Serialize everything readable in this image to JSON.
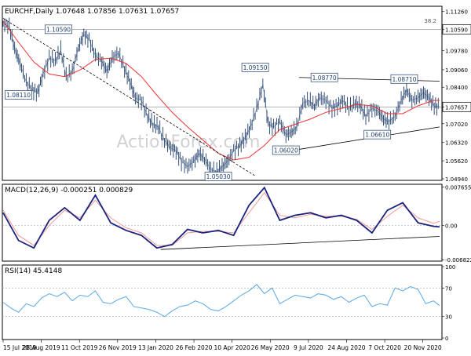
{
  "chart_data": [
    {
      "type": "candlestick",
      "title": "EURCHF,Daily  1.07648 1.07856 1.07631 1.07657",
      "price_readout": "1.07657",
      "y_ticks": [
        "1.11260",
        "1.10590",
        "1.09780",
        "1.09060",
        "1.08400",
        "1.07657",
        "1.07020",
        "1.06320",
        "1.05620",
        "1.04940"
      ],
      "ylim": [
        1.0494,
        1.114
      ],
      "x_ticks": [
        "15 Jul 2019",
        "28 Aug 2019",
        "11 Oct 2019",
        "26 Nov 2019",
        "13 Jan 2020",
        "26 Feb 2020",
        "10 Apr 2020",
        "26 May 2020",
        "9 Jul 2020",
        "24 Aug 2020",
        "7 Oct 2020",
        "20 Nov 2020"
      ],
      "series": [
        {
          "name": "Close",
          "x": [
            0,
            8,
            15,
            22,
            30,
            38,
            45,
            52,
            60,
            68,
            75,
            82,
            90,
            98,
            105,
            112,
            120,
            128,
            135,
            142,
            150,
            158,
            165,
            172,
            180,
            188,
            195,
            202,
            210,
            218,
            225,
            232,
            240,
            248,
            255,
            262,
            270,
            278,
            285,
            292,
            300,
            308,
            315,
            322,
            330,
            338,
            345,
            352,
            360,
            368,
            375,
            382,
            390,
            398,
            405,
            412,
            420,
            428,
            435,
            442,
            450,
            458,
            465,
            472,
            480,
            488,
            495,
            502,
            510,
            518,
            525,
            532,
            540,
            547,
            554,
            561,
            568
          ],
          "y": [
            1.108,
            1.107,
            1.0985,
            1.093,
            1.086,
            1.083,
            1.082,
            1.089,
            1.095,
            1.094,
            1.098,
            1.088,
            1.09,
            1.099,
            1.104,
            1.102,
            1.096,
            1.094,
            1.09,
            1.095,
            1.097,
            1.091,
            1.086,
            1.08,
            1.079,
            1.073,
            1.07,
            1.069,
            1.064,
            1.061,
            1.06,
            1.056,
            1.054,
            1.056,
            1.059,
            1.057,
            1.053,
            1.052,
            1.054,
            1.056,
            1.06,
            1.062,
            1.065,
            1.069,
            1.076,
            1.085,
            1.07,
            1.069,
            1.071,
            1.066,
            1.067,
            1.069,
            1.078,
            1.079,
            1.077,
            1.08,
            1.079,
            1.076,
            1.077,
            1.079,
            1.076,
            1.078,
            1.077,
            1.073,
            1.076,
            1.075,
            1.072,
            1.071,
            1.073,
            1.079,
            1.083,
            1.079,
            1.08,
            1.082,
            1.08,
            1.077,
            1.0766
          ]
        },
        {
          "name": "MA",
          "x": [
            0,
            20,
            40,
            60,
            80,
            100,
            120,
            140,
            160,
            180,
            200,
            220,
            240,
            260,
            280,
            300,
            320,
            340,
            360,
            380,
            400,
            420,
            440,
            460,
            480,
            500,
            520,
            540,
            560,
            568
          ],
          "y": [
            1.109,
            1.101,
            1.0935,
            1.089,
            1.088,
            1.0905,
            1.0945,
            1.095,
            1.093,
            1.088,
            1.081,
            1.0745,
            1.069,
            1.064,
            1.059,
            1.0565,
            1.0575,
            1.062,
            1.068,
            1.07,
            1.072,
            1.0745,
            1.076,
            1.0775,
            1.077,
            1.074,
            1.074,
            1.077,
            1.079,
            1.079
          ]
        }
      ],
      "levels": [
        {
          "label": "1.10590",
          "value": 1.1059
        },
        {
          "label": "1.07657",
          "value": 1.07657
        }
      ],
      "annotations": [
        {
          "label": "38.2",
          "value": 1.1078
        },
        {
          "label": "1.10590",
          "x": 72,
          "value": 1.1059
        },
        {
          "label": "1.08110",
          "x": 20,
          "value": 1.0811
        },
        {
          "label": "1.09150",
          "x": 328,
          "value": 1.0915
        },
        {
          "label": "1.08770",
          "x": 418,
          "value": 1.0877
        },
        {
          "label": "1.08710",
          "x": 522,
          "value": 1.0871
        },
        {
          "label": "1.06020",
          "x": 368,
          "value": 1.0602
        },
        {
          "label": "1.06610",
          "x": 487,
          "value": 1.0661
        },
        {
          "label": "1.05030",
          "x": 280,
          "value": 1.0503
        }
      ],
      "trendlines": [
        {
          "x": [
            0,
            328
          ],
          "y": [
            1.11,
            1.0505
          ]
        },
        {
          "x": [
            385,
            568
          ],
          "y": [
            1.0877,
            1.0863
          ]
        },
        {
          "x": [
            378,
            568
          ],
          "y": [
            1.0602,
            1.069
          ]
        }
      ],
      "watermark": "ActionForex.com"
    },
    {
      "type": "line",
      "title": "MACD(12,26,9) -0.000251 0.000829",
      "y_ticks": [
        "0.007655",
        "0.00",
        "-0.006822"
      ],
      "ylim": [
        -0.0068,
        0.0077
      ],
      "series": [
        {
          "name": "MACD",
          "x": [
            0,
            20,
            40,
            60,
            80,
            100,
            120,
            140,
            160,
            180,
            200,
            220,
            240,
            260,
            280,
            300,
            320,
            340,
            360,
            380,
            400,
            420,
            440,
            460,
            480,
            500,
            520,
            540,
            560,
            568
          ],
          "y": [
            0.0025,
            -0.003,
            -0.0045,
            0.001,
            0.0035,
            0.001,
            0.006,
            0.0005,
            -0.001,
            -0.002,
            -0.0045,
            -0.0038,
            -0.0008,
            -0.0015,
            -0.001,
            -0.002,
            0.004,
            0.0075,
            0.001,
            0.002,
            0.0025,
            0.0015,
            0.002,
            0.001,
            -0.0015,
            0.003,
            0.0045,
            0.0005,
            -0.0002,
            -0.0003
          ]
        },
        {
          "name": "Signal",
          "x": [
            0,
            20,
            40,
            60,
            80,
            100,
            120,
            140,
            160,
            180,
            200,
            220,
            240,
            260,
            280,
            300,
            320,
            340,
            360,
            380,
            400,
            420,
            440,
            460,
            480,
            500,
            520,
            540,
            560,
            568
          ],
          "y": [
            0.003,
            -0.002,
            -0.004,
            0.0,
            0.003,
            0.0015,
            0.005,
            0.0015,
            -0.0005,
            -0.0015,
            -0.004,
            -0.004,
            -0.0015,
            -0.0012,
            -0.0012,
            -0.0015,
            0.0025,
            0.0065,
            0.002,
            0.0015,
            0.0022,
            0.0018,
            0.0018,
            0.0012,
            -0.0008,
            0.0018,
            0.004,
            0.0015,
            0.0004,
            0.0008
          ]
        }
      ],
      "zero_line": 0,
      "trendline": {
        "x": [
          205,
          568
        ],
        "y": [
          -0.0048,
          -0.0022
        ]
      }
    },
    {
      "type": "line",
      "title": "RSI(14) 45.4148",
      "y_ticks": [
        "100",
        "70",
        "30",
        "0"
      ],
      "ylim": [
        0,
        100
      ],
      "series": [
        {
          "name": "RSI",
          "x": [
            0,
            10,
            20,
            30,
            40,
            50,
            60,
            70,
            80,
            90,
            100,
            110,
            120,
            130,
            140,
            150,
            160,
            170,
            180,
            190,
            200,
            210,
            220,
            230,
            240,
            250,
            260,
            270,
            280,
            290,
            300,
            310,
            320,
            330,
            340,
            350,
            360,
            370,
            380,
            390,
            400,
            410,
            420,
            430,
            440,
            450,
            460,
            470,
            480,
            490,
            500,
            510,
            520,
            530,
            540,
            550,
            560,
            568
          ],
          "y": [
            50,
            42,
            36,
            48,
            44,
            56,
            62,
            58,
            64,
            52,
            60,
            58,
            66,
            50,
            48,
            54,
            58,
            44,
            42,
            40,
            36,
            30,
            38,
            44,
            46,
            52,
            48,
            40,
            38,
            44,
            52,
            60,
            66,
            75,
            62,
            70,
            48,
            54,
            60,
            58,
            56,
            62,
            60,
            54,
            58,
            50,
            56,
            60,
            44,
            48,
            46,
            70,
            66,
            72,
            68,
            48,
            52,
            45.4
          ]
        }
      ],
      "levels": [
        70,
        30
      ]
    }
  ]
}
